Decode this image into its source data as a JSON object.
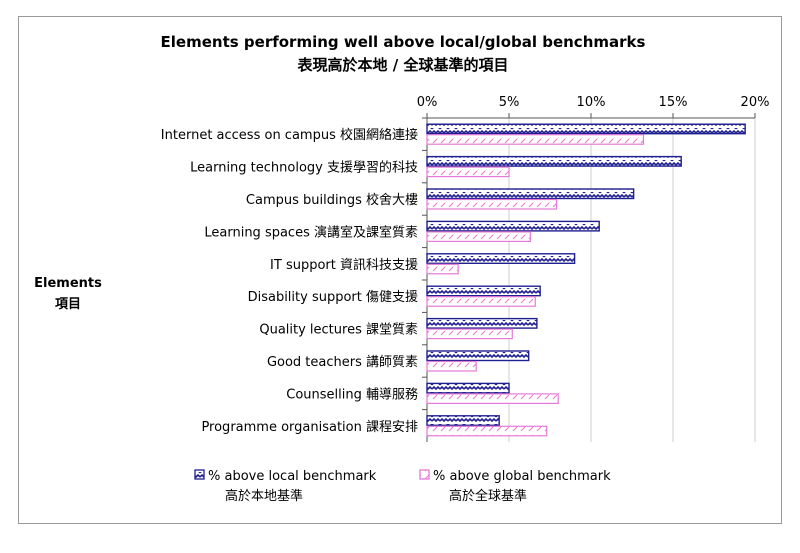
{
  "chart_data": {
    "type": "bar",
    "orientation": "horizontal",
    "title": "Elements performing well above local/global benchmarks",
    "subtitle": "表現高於本地 / 全球基準的項目",
    "ylabel": "Elements",
    "ylabel_zh": "項目",
    "x_ticks": [
      "0%",
      "5%",
      "10%",
      "15%",
      "20%"
    ],
    "xlim": [
      0,
      20
    ],
    "axis_position": "top",
    "grid": "vertical",
    "legend_position": "bottom",
    "categories": [
      "Internet access on campus 校園網絡連接",
      "Learning technology 支援學習的科技",
      "Campus buildings 校舍大樓",
      "Learning spaces 演講室及課室質素",
      "IT support 資訊科技支援",
      "Disability support 傷健支援",
      "Quality lectures 課堂質素",
      "Good teachers 講師質素",
      "Counselling 輔導服務",
      "Programme organisation 課程安排"
    ],
    "series": [
      {
        "name": "% above local benchmark",
        "name_zh": "高於本地基準",
        "color": "#1f1f8f",
        "values": [
          19.4,
          15.5,
          12.6,
          10.5,
          9.0,
          6.9,
          6.7,
          6.2,
          5.0,
          4.4
        ]
      },
      {
        "name": "% above global benchmark",
        "name_zh": "高於全球基準",
        "color": "#e67ad6",
        "values": [
          13.2,
          5.0,
          7.9,
          6.3,
          1.9,
          6.6,
          5.2,
          3.0,
          8.0,
          7.3
        ]
      }
    ]
  }
}
